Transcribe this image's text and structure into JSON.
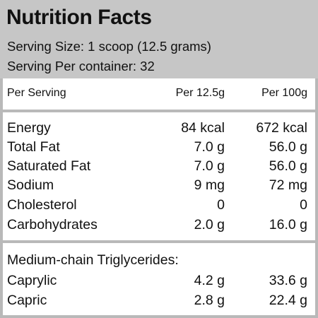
{
  "title": "Nutrition Facts",
  "serving_size": "Serving Size: 1 scoop (12.5 grams)",
  "servings_per_container": "Serving Per container: 32",
  "columns": {
    "name": "Per Serving",
    "per_serving": "Per 12.5g",
    "per_100g": "Per 100g"
  },
  "nutrients": [
    {
      "name": "Energy",
      "per_serving": "84 kcal",
      "per_100g": "672 kcal"
    },
    {
      "name": "Total Fat",
      "per_serving": "7.0 g",
      "per_100g": "56.0 g"
    },
    {
      "name": "Saturated Fat",
      "per_serving": "7.0 g",
      "per_100g": "56.0 g"
    },
    {
      "name": "Sodium",
      "per_serving": "9 mg",
      "per_100g": "72 mg"
    },
    {
      "name": "Cholesterol",
      "per_serving": "0",
      "per_100g": "0"
    },
    {
      "name": "Carbohydrates",
      "per_serving": "2.0 g",
      "per_100g": "16.0 g"
    }
  ],
  "mct": {
    "heading": "Medium-chain Triglycerides:",
    "items": [
      {
        "name": "Caprylic",
        "per_serving": "4.2 g",
        "per_100g": "33.6 g"
      },
      {
        "name": "Capric",
        "per_serving": "2.8 g",
        "per_100g": "22.4 g"
      }
    ]
  },
  "colors": {
    "header_background": "#c6c6c6",
    "border": "#b9b9b9",
    "text": "#111111"
  }
}
